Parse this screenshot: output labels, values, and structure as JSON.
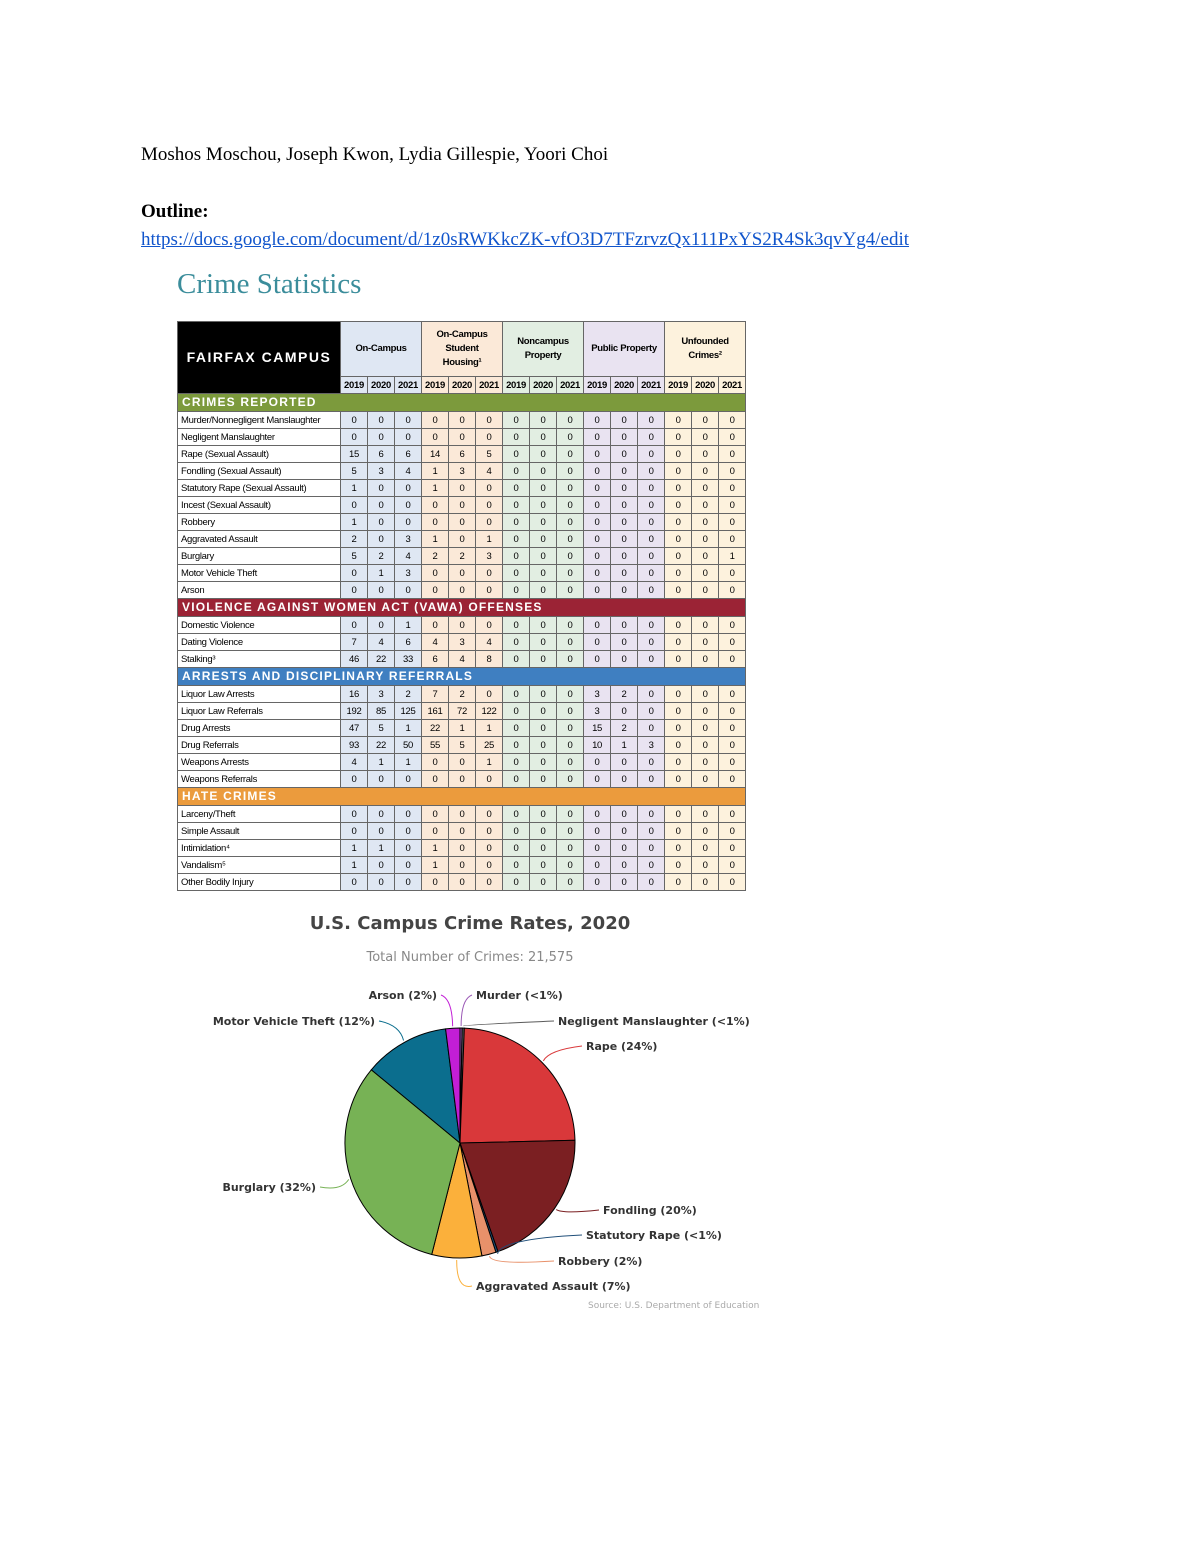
{
  "header": {
    "authors": "Moshos Moschou, Joseph Kwon, Lydia Gillespie, Yoori Choi"
  },
  "outline": {
    "label": "Outline:",
    "link": "https://docs.google.com/document/d/1z0sRWKkcZK-vfO3D7TFzrvzQx111PxYS2R4Sk3qvYg4/edit"
  },
  "table": {
    "title": "Crime Statistics",
    "campus": "FAIRFAX CAMPUS",
    "groups": [
      {
        "name": "On-Campus",
        "color": "#dfe7f3"
      },
      {
        "name": "On-Campus Student Housing¹",
        "color": "#fbe9d8"
      },
      {
        "name": "Noncampus Property",
        "color": "#e2eee2"
      },
      {
        "name": "Public Property",
        "color": "#e9e3f1"
      },
      {
        "name": "Unfounded Crimes²",
        "color": "#fdf2dd"
      }
    ],
    "years": [
      "2019",
      "2020",
      "2021"
    ],
    "sections": [
      {
        "title": "CRIMES REPORTED",
        "color": "#7c9a3c",
        "rows": [
          {
            "label": "Murder/Nonnegligent Manslaughter",
            "cells": [
              0,
              0,
              0,
              0,
              0,
              0,
              0,
              0,
              0,
              0,
              0,
              0,
              0,
              0,
              0
            ]
          },
          {
            "label": "Negligent Manslaughter",
            "cells": [
              0,
              0,
              0,
              0,
              0,
              0,
              0,
              0,
              0,
              0,
              0,
              0,
              0,
              0,
              0
            ]
          },
          {
            "label": "Rape (Sexual Assault)",
            "cells": [
              15,
              6,
              6,
              14,
              6,
              5,
              0,
              0,
              0,
              0,
              0,
              0,
              0,
              0,
              0
            ]
          },
          {
            "label": "Fondling (Sexual Assault)",
            "cells": [
              5,
              3,
              4,
              1,
              3,
              4,
              0,
              0,
              0,
              0,
              0,
              0,
              0,
              0,
              0
            ]
          },
          {
            "label": "Statutory Rape (Sexual Assault)",
            "cells": [
              1,
              0,
              0,
              1,
              0,
              0,
              0,
              0,
              0,
              0,
              0,
              0,
              0,
              0,
              0
            ]
          },
          {
            "label": "Incest (Sexual Assault)",
            "cells": [
              0,
              0,
              0,
              0,
              0,
              0,
              0,
              0,
              0,
              0,
              0,
              0,
              0,
              0,
              0
            ]
          },
          {
            "label": "Robbery",
            "cells": [
              1,
              0,
              0,
              0,
              0,
              0,
              0,
              0,
              0,
              0,
              0,
              0,
              0,
              0,
              0
            ]
          },
          {
            "label": "Aggravated Assault",
            "cells": [
              2,
              0,
              3,
              1,
              0,
              1,
              0,
              0,
              0,
              0,
              0,
              0,
              0,
              0,
              0
            ]
          },
          {
            "label": "Burglary",
            "cells": [
              5,
              2,
              4,
              2,
              2,
              3,
              0,
              0,
              0,
              0,
              0,
              0,
              0,
              0,
              1
            ]
          },
          {
            "label": "Motor Vehicle Theft",
            "cells": [
              0,
              1,
              3,
              0,
              0,
              0,
              0,
              0,
              0,
              0,
              0,
              0,
              0,
              0,
              0
            ]
          },
          {
            "label": "Arson",
            "cells": [
              0,
              0,
              0,
              0,
              0,
              0,
              0,
              0,
              0,
              0,
              0,
              0,
              0,
              0,
              0
            ]
          }
        ]
      },
      {
        "title": "VIOLENCE AGAINST WOMEN ACT (VAWA) OFFENSES",
        "color": "#9b2335",
        "rows": [
          {
            "label": "Domestic Violence",
            "cells": [
              0,
              0,
              1,
              0,
              0,
              0,
              0,
              0,
              0,
              0,
              0,
              0,
              0,
              0,
              0
            ]
          },
          {
            "label": "Dating Violence",
            "cells": [
              7,
              4,
              6,
              4,
              3,
              4,
              0,
              0,
              0,
              0,
              0,
              0,
              0,
              0,
              0
            ]
          },
          {
            "label": "Stalking³",
            "cells": [
              46,
              22,
              33,
              6,
              4,
              8,
              0,
              0,
              0,
              0,
              0,
              0,
              0,
              0,
              0
            ]
          }
        ]
      },
      {
        "title": "ARRESTS AND DISCIPLINARY REFERRALS",
        "color": "#3f7fc1",
        "rows": [
          {
            "label": "Liquor Law Arrests",
            "cells": [
              16,
              3,
              2,
              7,
              2,
              0,
              0,
              0,
              0,
              3,
              2,
              0,
              0,
              0,
              0
            ]
          },
          {
            "label": "Liquor Law Referrals",
            "cells": [
              192,
              85,
              125,
              161,
              72,
              122,
              0,
              0,
              0,
              3,
              0,
              0,
              0,
              0,
              0
            ]
          },
          {
            "label": "Drug Arrests",
            "cells": [
              47,
              5,
              1,
              22,
              1,
              1,
              0,
              0,
              0,
              15,
              2,
              0,
              0,
              0,
              0
            ]
          },
          {
            "label": "Drug Referrals",
            "cells": [
              93,
              22,
              50,
              55,
              5,
              25,
              0,
              0,
              0,
              10,
              1,
              3,
              0,
              0,
              0
            ]
          },
          {
            "label": "Weapons Arrests",
            "cells": [
              4,
              1,
              1,
              0,
              0,
              1,
              0,
              0,
              0,
              0,
              0,
              0,
              0,
              0,
              0
            ]
          },
          {
            "label": "Weapons Referrals",
            "cells": [
              0,
              0,
              0,
              0,
              0,
              0,
              0,
              0,
              0,
              0,
              0,
              0,
              0,
              0,
              0
            ]
          }
        ]
      },
      {
        "title": "HATE CRIMES",
        "color": "#eb9b3d",
        "rows": [
          {
            "label": "Larceny/Theft",
            "cells": [
              0,
              0,
              0,
              0,
              0,
              0,
              0,
              0,
              0,
              0,
              0,
              0,
              0,
              0,
              0
            ]
          },
          {
            "label": "Simple Assault",
            "cells": [
              0,
              0,
              0,
              0,
              0,
              0,
              0,
              0,
              0,
              0,
              0,
              0,
              0,
              0,
              0
            ]
          },
          {
            "label": "Intimidation⁴",
            "cells": [
              1,
              1,
              0,
              1,
              0,
              0,
              0,
              0,
              0,
              0,
              0,
              0,
              0,
              0,
              0
            ]
          },
          {
            "label": "Vandalism⁵",
            "cells": [
              1,
              0,
              0,
              1,
              0,
              0,
              0,
              0,
              0,
              0,
              0,
              0,
              0,
              0,
              0
            ]
          },
          {
            "label": "Other Bodily Injury",
            "cells": [
              0,
              0,
              0,
              0,
              0,
              0,
              0,
              0,
              0,
              0,
              0,
              0,
              0,
              0,
              0
            ]
          }
        ]
      }
    ]
  },
  "chart_data": {
    "type": "pie",
    "title": "U.S. Campus Crime Rates, 2020",
    "subtitle": "Total Number of Crimes: 21,575",
    "categories": [
      "Murder (<1%)",
      "Negligent Manslaughter (<1%)",
      "Rape (24%)",
      "Fondling (20%)",
      "Statutory Rape (<1%)",
      "Robbery (2%)",
      "Aggravated Assault (7%)",
      "Burglary (32%)",
      "Motor Vehicle Theft (12%)",
      "Arson (2%)"
    ],
    "values": [
      0.3,
      0.3,
      24,
      20,
      0.3,
      2,
      7,
      32,
      12,
      2
    ],
    "colors": [
      "#9b59b6",
      "#5a5a5a",
      "#d9383a",
      "#7b1f22",
      "#1f4e79",
      "#e8916a",
      "#fbb03b",
      "#77b255",
      "#0b6e8e",
      "#c21ed6"
    ],
    "source": "Source: U.S. Department of Education"
  }
}
